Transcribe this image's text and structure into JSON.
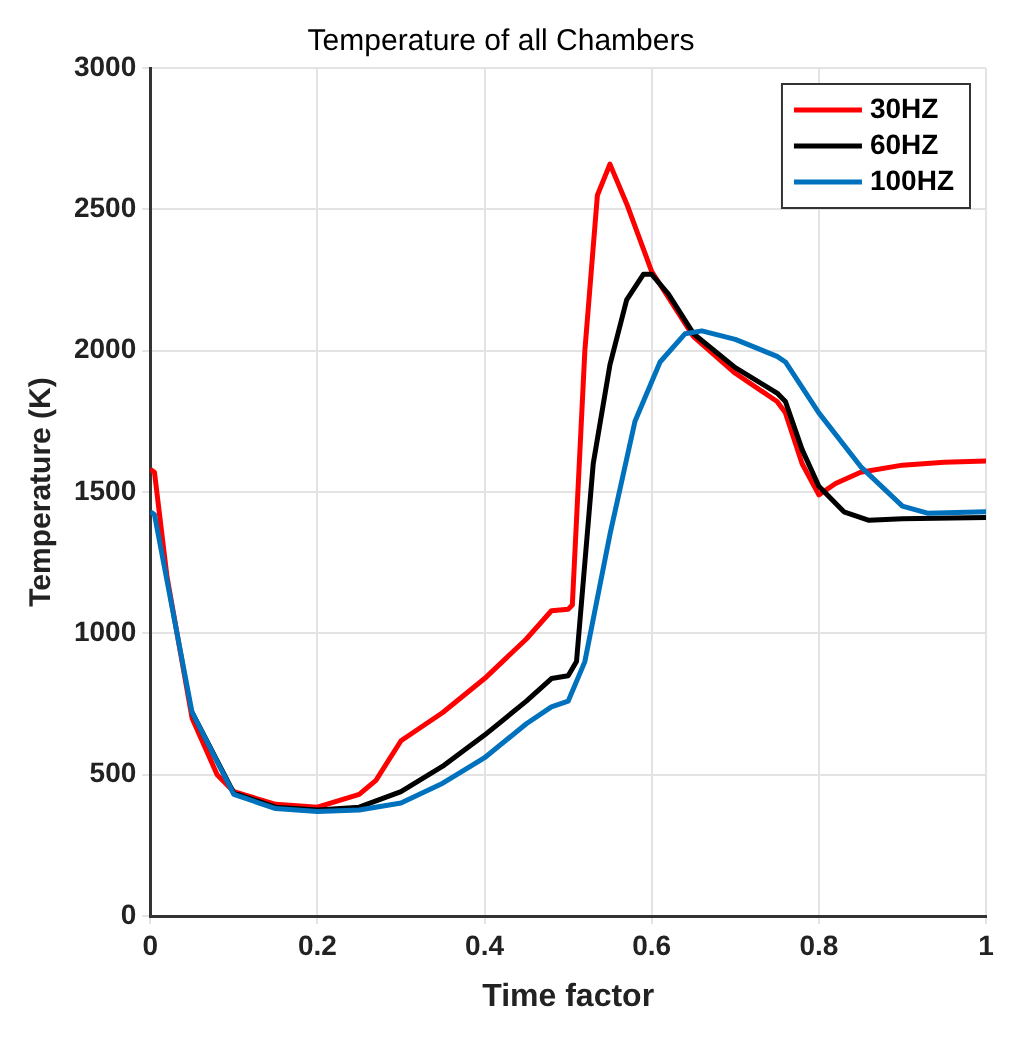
{
  "chart_data": {
    "type": "line",
    "title": "Temperature of all Chambers",
    "xlabel": "Time factor",
    "ylabel": "Temperature (K)",
    "xlim": [
      0,
      1
    ],
    "xticks": [
      0,
      0.2,
      0.4,
      0.6,
      0.8,
      1
    ],
    "ylim": [
      0,
      3000
    ],
    "yticks": [
      0,
      500,
      1000,
      1500,
      2000,
      2500,
      3000
    ],
    "grid": true,
    "legend": "top right",
    "marker": "none",
    "line_style": "solid",
    "series": [
      {
        "name": "30HZ",
        "color": "#ff0000",
        "x": [
          0,
          0.005,
          0.02,
          0.05,
          0.08,
          0.1,
          0.15,
          0.2,
          0.25,
          0.27,
          0.3,
          0.35,
          0.4,
          0.45,
          0.48,
          0.5,
          0.505,
          0.52,
          0.535,
          0.55,
          0.57,
          0.6,
          0.65,
          0.7,
          0.75,
          0.76,
          0.78,
          0.8,
          0.82,
          0.85,
          0.9,
          0.95,
          1
        ],
        "values": [
          1580,
          1570,
          1200,
          700,
          500,
          440,
          395,
          385,
          430,
          480,
          620,
          720,
          840,
          980,
          1080,
          1085,
          1100,
          2000,
          2550,
          2660,
          2520,
          2280,
          2050,
          1920,
          1820,
          1780,
          1600,
          1490,
          1530,
          1570,
          1595,
          1605,
          1610
        ]
      },
      {
        "name": "60HZ",
        "color": "#000000",
        "x": [
          0.05,
          0.1,
          0.15,
          0.2,
          0.25,
          0.3,
          0.35,
          0.4,
          0.45,
          0.48,
          0.5,
          0.51,
          0.53,
          0.55,
          0.57,
          0.59,
          0.6,
          0.62,
          0.65,
          0.7,
          0.75,
          0.76,
          0.78,
          0.8,
          0.83,
          0.86,
          0.9,
          1
        ],
        "values": [
          720,
          435,
          385,
          375,
          385,
          440,
          530,
          640,
          760,
          840,
          850,
          900,
          1600,
          1950,
          2180,
          2270,
          2270,
          2200,
          2060,
          1940,
          1850,
          1820,
          1650,
          1520,
          1430,
          1400,
          1405,
          1410
        ]
      },
      {
        "name": "100HZ",
        "color": "#0072bd",
        "x": [
          0,
          0.005,
          0.05,
          0.1,
          0.15,
          0.2,
          0.25,
          0.3,
          0.35,
          0.4,
          0.45,
          0.48,
          0.5,
          0.52,
          0.55,
          0.58,
          0.61,
          0.64,
          0.66,
          0.7,
          0.75,
          0.76,
          0.8,
          0.85,
          0.9,
          0.93,
          1
        ],
        "values": [
          1430,
          1420,
          720,
          430,
          380,
          370,
          375,
          400,
          470,
          560,
          680,
          740,
          760,
          900,
          1350,
          1750,
          1960,
          2060,
          2070,
          2040,
          1980,
          1960,
          1780,
          1590,
          1450,
          1425,
          1430
        ]
      }
    ]
  }
}
